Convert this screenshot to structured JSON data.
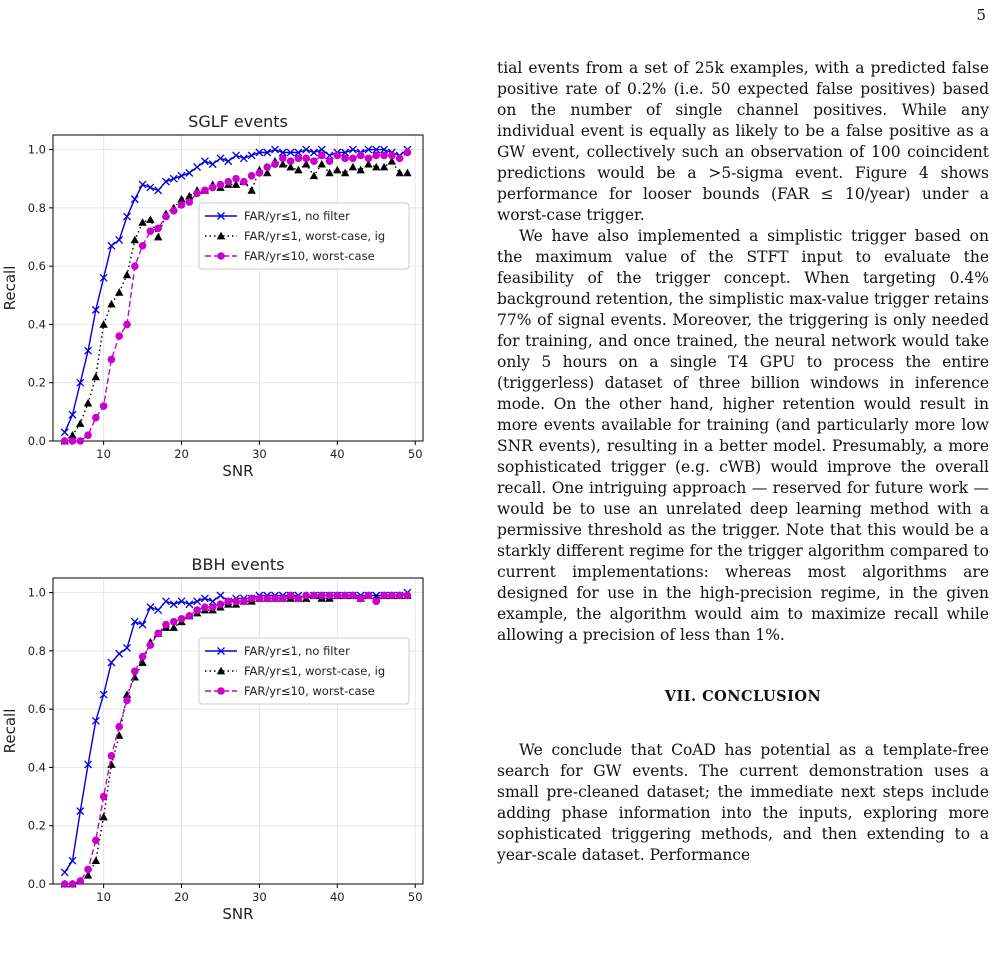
{
  "page_number": "5",
  "paragraphs": [
    "tial events from a set of 25k examples, with a predicted false positive rate of 0.2% (i.e. 50 expected false positives) based on the number of single channel positives. While any individual event is equally as likely to be a false positive as a GW event, collectively such an observation of 100 coincident predictions would be a >5-sigma event. Figure 4 shows performance for looser bounds (FAR ≤ 10/year) under a worst-case trigger.",
    "We have also implemented a simplistic trigger based on the maximum value of the STFT input to evaluate the feasibility of the trigger concept. When targeting 0.4% background retention, the simplistic max-value trigger retains 77% of signal events. Moreover, the triggering is only needed for training, and once trained, the neural network would take only 5 hours on a single T4 GPU to process the entire (triggerless) dataset of three billion windows in inference mode. On the other hand, higher retention would result in more events available for training (and particularly more low SNR events), resulting in a better model. Presumably, a more sophisticated trigger (e.g. cWB) would improve the overall recall. One intriguing approach — reserved for future work — would be to use an unrelated deep learning method with a permissive threshold as the trigger. Note that this would be a starkly different regime for the trigger algorithm compared to current implementations: whereas most algorithms are designed for use in the high-precision regime, in the given example, the algorithm would aim to maximize recall while allowing a precision of less than 1%."
  ],
  "section_heading": "VII.   CONCLUSION",
  "conclusion_text": "We conclude that CoAD has potential as a template-free search for GW events. The current demonstration uses a small pre-cleaned dataset; the immediate next steps include adding phase information into the inputs, exploring more sophisticated triggering methods, and then extending to a year-scale dataset. Performance",
  "colors": {
    "blue": "#0000dd",
    "black": "#000000",
    "magenta": "#cc00cc",
    "grid": "#e6e6e6"
  },
  "chart_data": [
    {
      "type": "line",
      "title": "SGLF events",
      "xlabel": "SNR",
      "ylabel": "Recall",
      "xlim": [
        3.5,
        51
      ],
      "ylim": [
        0,
        1.05
      ],
      "xticks": [
        "10",
        "20",
        "30",
        "40",
        "50"
      ],
      "yticks": [
        "0.0",
        "0.2",
        "0.4",
        "0.6",
        "0.8",
        "1.0"
      ],
      "grid": true,
      "legend": "center-right",
      "x": [
        5,
        6,
        7,
        8,
        9,
        10,
        11,
        12,
        13,
        14,
        15,
        16,
        17,
        18,
        19,
        20,
        21,
        22,
        23,
        24,
        25,
        26,
        27,
        28,
        29,
        30,
        31,
        32,
        33,
        34,
        35,
        36,
        37,
        38,
        39,
        40,
        41,
        42,
        43,
        44,
        45,
        46,
        47,
        48,
        49
      ],
      "series": [
        {
          "name": "FAR/yr≤1, no filter",
          "style": "blue-x-solid",
          "values": [
            0.03,
            0.09,
            0.2,
            0.31,
            0.45,
            0.56,
            0.67,
            0.69,
            0.77,
            0.83,
            0.88,
            0.87,
            0.86,
            0.89,
            0.9,
            0.91,
            0.92,
            0.94,
            0.96,
            0.95,
            0.97,
            0.96,
            0.98,
            0.97,
            0.98,
            0.99,
            0.99,
            1.0,
            0.99,
            0.99,
            0.99,
            1.0,
            0.99,
            1.0,
            0.98,
            0.99,
            0.99,
            1.0,
            0.99,
            1.0,
            1.0,
            1.0,
            0.99,
            0.98,
            1.0
          ]
        },
        {
          "name": "FAR/yr≤1, worst-case, ig",
          "style": "black-triangle-dotted",
          "values": [
            0.0,
            0.02,
            0.06,
            0.13,
            0.22,
            0.4,
            0.47,
            0.51,
            0.57,
            0.69,
            0.75,
            0.76,
            0.7,
            0.78,
            0.8,
            0.83,
            0.84,
            0.86,
            0.86,
            0.88,
            0.87,
            0.88,
            0.88,
            0.89,
            0.86,
            0.93,
            0.92,
            0.96,
            0.95,
            0.94,
            0.93,
            0.95,
            0.91,
            0.95,
            0.92,
            0.93,
            0.92,
            0.94,
            0.93,
            0.95,
            0.94,
            0.94,
            0.96,
            0.92,
            0.92
          ]
        },
        {
          "name": "FAR/yr≤10, worst-case",
          "style": "magenta-dot-dashed",
          "values": [
            0.0,
            0.0,
            0.0,
            0.02,
            0.08,
            0.12,
            0.28,
            0.36,
            0.4,
            0.6,
            0.67,
            0.72,
            0.73,
            0.77,
            0.79,
            0.81,
            0.82,
            0.85,
            0.86,
            0.87,
            0.88,
            0.89,
            0.9,
            0.89,
            0.91,
            0.92,
            0.94,
            0.95,
            0.97,
            0.96,
            0.97,
            0.97,
            0.96,
            0.98,
            0.96,
            0.98,
            0.97,
            0.97,
            0.98,
            0.97,
            0.98,
            0.98,
            0.98,
            0.97,
            0.99
          ]
        }
      ]
    },
    {
      "type": "line",
      "title": "BBH events",
      "xlabel": "SNR",
      "ylabel": "Recall",
      "xlim": [
        3.5,
        51
      ],
      "ylim": [
        0,
        1.05
      ],
      "xticks": [
        "10",
        "20",
        "30",
        "40",
        "50"
      ],
      "yticks": [
        "0.0",
        "0.2",
        "0.4",
        "0.6",
        "0.8",
        "1.0"
      ],
      "grid": true,
      "legend": "center-right",
      "x": [
        5,
        6,
        7,
        8,
        9,
        10,
        11,
        12,
        13,
        14,
        15,
        16,
        17,
        18,
        19,
        20,
        21,
        22,
        23,
        24,
        25,
        26,
        27,
        28,
        29,
        30,
        31,
        32,
        33,
        34,
        35,
        36,
        37,
        38,
        39,
        40,
        41,
        42,
        43,
        44,
        45,
        46,
        47,
        48,
        49
      ],
      "series": [
        {
          "name": "FAR/yr≤1, no filter",
          "style": "blue-x-solid",
          "values": [
            0.04,
            0.08,
            0.25,
            0.41,
            0.56,
            0.65,
            0.76,
            0.79,
            0.81,
            0.9,
            0.89,
            0.95,
            0.94,
            0.97,
            0.96,
            0.97,
            0.96,
            0.97,
            0.98,
            0.97,
            0.99,
            0.97,
            0.98,
            0.98,
            0.98,
            0.99,
            0.99,
            0.99,
            0.99,
            0.99,
            0.99,
            0.98,
            0.99,
            0.99,
            0.99,
            0.99,
            0.99,
            0.99,
            0.99,
            0.99,
            0.99,
            0.99,
            0.99,
            0.99,
            1.0
          ]
        },
        {
          "name": "FAR/yr≤1, worst-case, ig",
          "style": "black-triangle-dotted",
          "values": [
            0.0,
            0.0,
            0.01,
            0.03,
            0.08,
            0.23,
            0.41,
            0.51,
            0.65,
            0.71,
            0.76,
            0.83,
            0.86,
            0.88,
            0.88,
            0.9,
            0.92,
            0.93,
            0.94,
            0.94,
            0.95,
            0.96,
            0.96,
            0.97,
            0.97,
            0.98,
            0.98,
            0.98,
            0.98,
            0.98,
            0.98,
            0.98,
            0.99,
            0.98,
            0.98,
            0.99,
            0.99,
            0.99,
            0.98,
            0.99,
            0.98,
            0.99,
            0.99,
            0.99,
            0.99
          ]
        },
        {
          "name": "FAR/yr≤10, worst-case",
          "style": "magenta-dot-dashed",
          "values": [
            0.0,
            0.0,
            0.01,
            0.05,
            0.15,
            0.3,
            0.44,
            0.54,
            0.63,
            0.73,
            0.78,
            0.82,
            0.86,
            0.89,
            0.9,
            0.91,
            0.92,
            0.94,
            0.95,
            0.95,
            0.96,
            0.97,
            0.97,
            0.97,
            0.98,
            0.98,
            0.98,
            0.98,
            0.98,
            0.99,
            0.98,
            0.99,
            0.99,
            0.99,
            0.99,
            0.99,
            0.99,
            0.99,
            0.98,
            0.99,
            0.97,
            0.99,
            0.99,
            0.99,
            0.99
          ]
        }
      ]
    }
  ]
}
